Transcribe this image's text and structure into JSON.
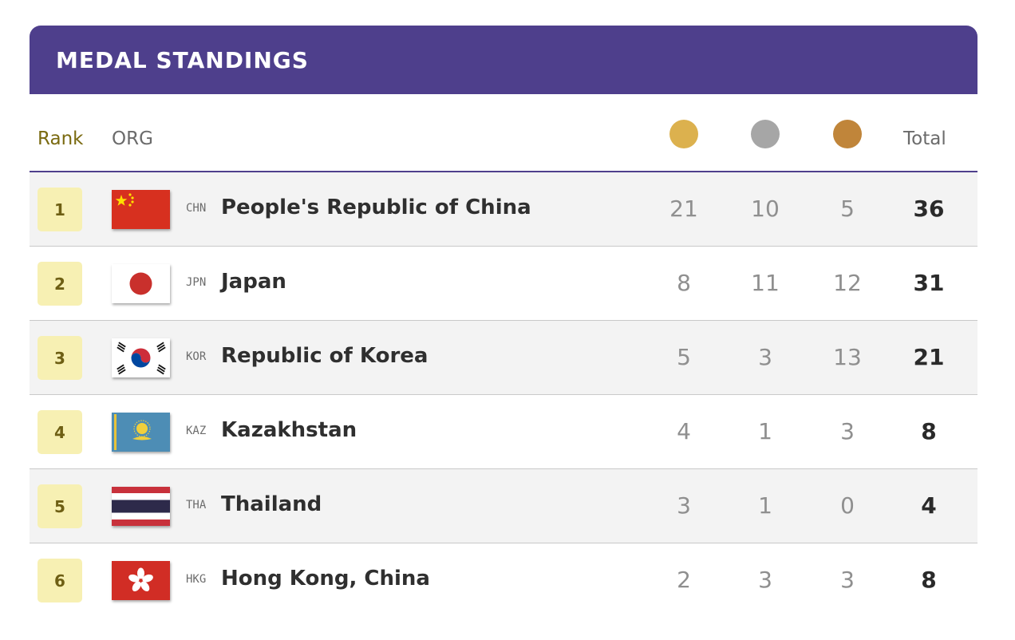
{
  "banner": {
    "title": "MEDAL STANDINGS"
  },
  "header": {
    "rank": "Rank",
    "org": "ORG",
    "total": "Total",
    "medals": [
      {
        "icon": "gold-medal-icon",
        "color": "#dcb14e"
      },
      {
        "icon": "silver-medal-icon",
        "color": "#a6a6a6"
      },
      {
        "icon": "bronze-medal-icon",
        "color": "#c0853a"
      }
    ]
  },
  "rows": [
    {
      "rank": "1",
      "code": "CHN",
      "name": "People's Republic of China",
      "gold": "21",
      "silver": "10",
      "bronze": "5",
      "total": "36",
      "flag": "china-flag-icon"
    },
    {
      "rank": "2",
      "code": "JPN",
      "name": "Japan",
      "gold": "8",
      "silver": "11",
      "bronze": "12",
      "total": "31",
      "flag": "japan-flag-icon"
    },
    {
      "rank": "3",
      "code": "KOR",
      "name": "Republic of Korea",
      "gold": "5",
      "silver": "3",
      "bronze": "13",
      "total": "21",
      "flag": "korea-flag-icon"
    },
    {
      "rank": "4",
      "code": "KAZ",
      "name": "Kazakhstan",
      "gold": "4",
      "silver": "1",
      "bronze": "3",
      "total": "8",
      "flag": "kazakhstan-flag-icon"
    },
    {
      "rank": "5",
      "code": "THA",
      "name": "Thailand",
      "gold": "3",
      "silver": "1",
      "bronze": "0",
      "total": "4",
      "flag": "thailand-flag-icon"
    },
    {
      "rank": "6",
      "code": "HKG",
      "name": "Hong Kong, China",
      "gold": "2",
      "silver": "3",
      "bronze": "3",
      "total": "8",
      "flag": "hong-kong-flag-icon"
    }
  ],
  "colors": {
    "banner": "#4e3f8c",
    "rank_badge": "#f7f0b3",
    "row_shade": "#f3f3f3"
  }
}
